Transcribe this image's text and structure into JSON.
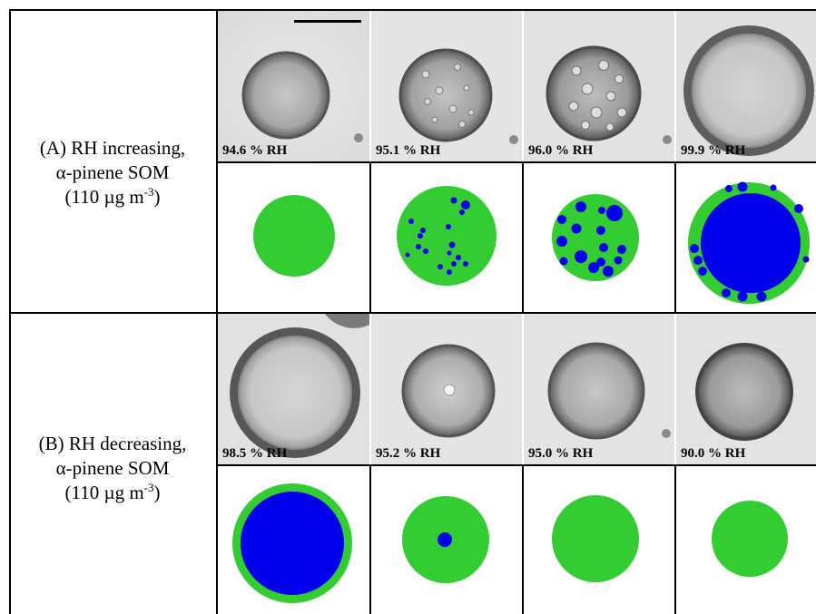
{
  "rows": [
    {
      "label_lines": [
        "(A) RH increasing,",
        "α-pinene SOM",
        "(110 µg m"
      ],
      "unit_sup": "-3",
      "unit_close": ")",
      "rh": [
        "94.6 % RH",
        "95.1 % RH",
        "96.0 % RH",
        "99.9 % RH"
      ]
    },
    {
      "label_lines": [
        "(B) RH decreasing,",
        "α-pinene SOM",
        "(110 µg m"
      ],
      "unit_sup": "-3",
      "unit_close": ")",
      "rh": [
        "98.5 % RH",
        "95.2 % RH",
        "95.0 % RH",
        "90.0 % RH"
      ]
    }
  ],
  "colors": {
    "organic_phase": "#33cc33",
    "aqueous_phase": "#0000ee",
    "grid": "#000000"
  }
}
